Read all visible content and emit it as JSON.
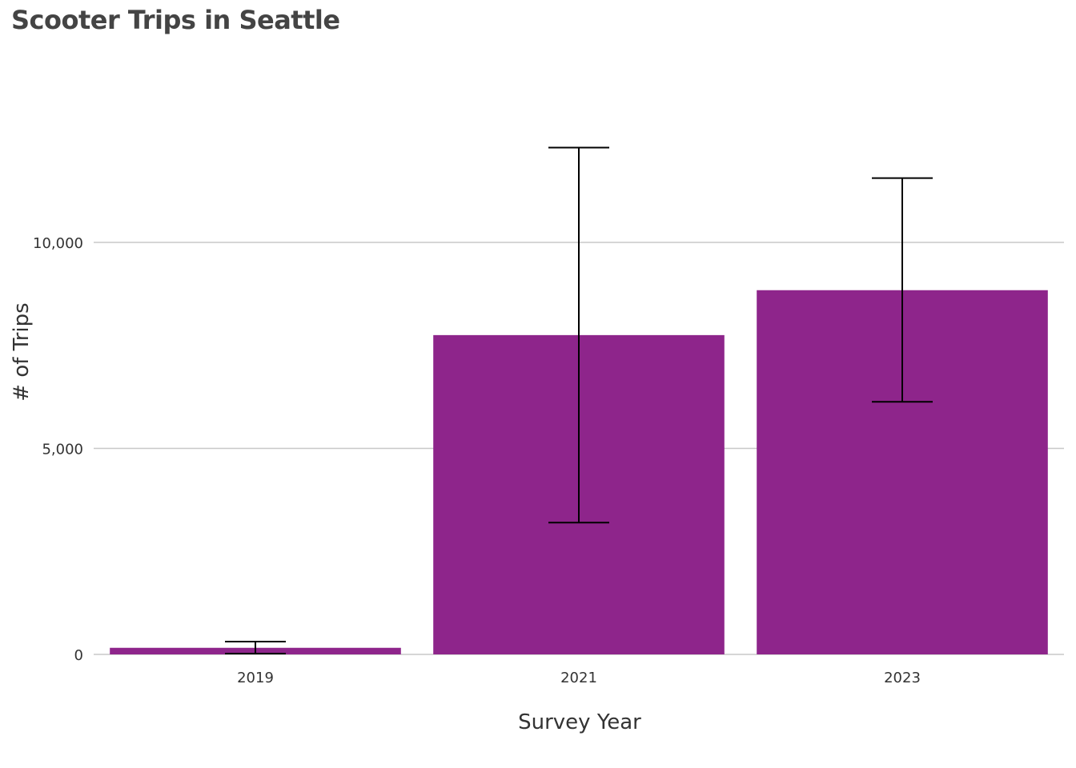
{
  "chart_data": {
    "type": "bar",
    "title": "Scooter Trips in Seattle",
    "xlabel": "Survey Year",
    "ylabel": "# of Trips",
    "categories": [
      "2019",
      "2021",
      "2023"
    ],
    "values": [
      160,
      7750,
      8840
    ],
    "error_low": [
      20,
      3200,
      6130
    ],
    "error_high": [
      310,
      12300,
      11560
    ],
    "yticks": [
      0,
      5000,
      10000
    ],
    "ytick_labels": [
      "0",
      "5,000",
      "10,000"
    ],
    "ylim": [
      0,
      13500
    ],
    "grid": true,
    "legend": "none",
    "bar_color": "#8E258B",
    "error_color": "#000000",
    "grid_color": "#C8C8C8"
  }
}
